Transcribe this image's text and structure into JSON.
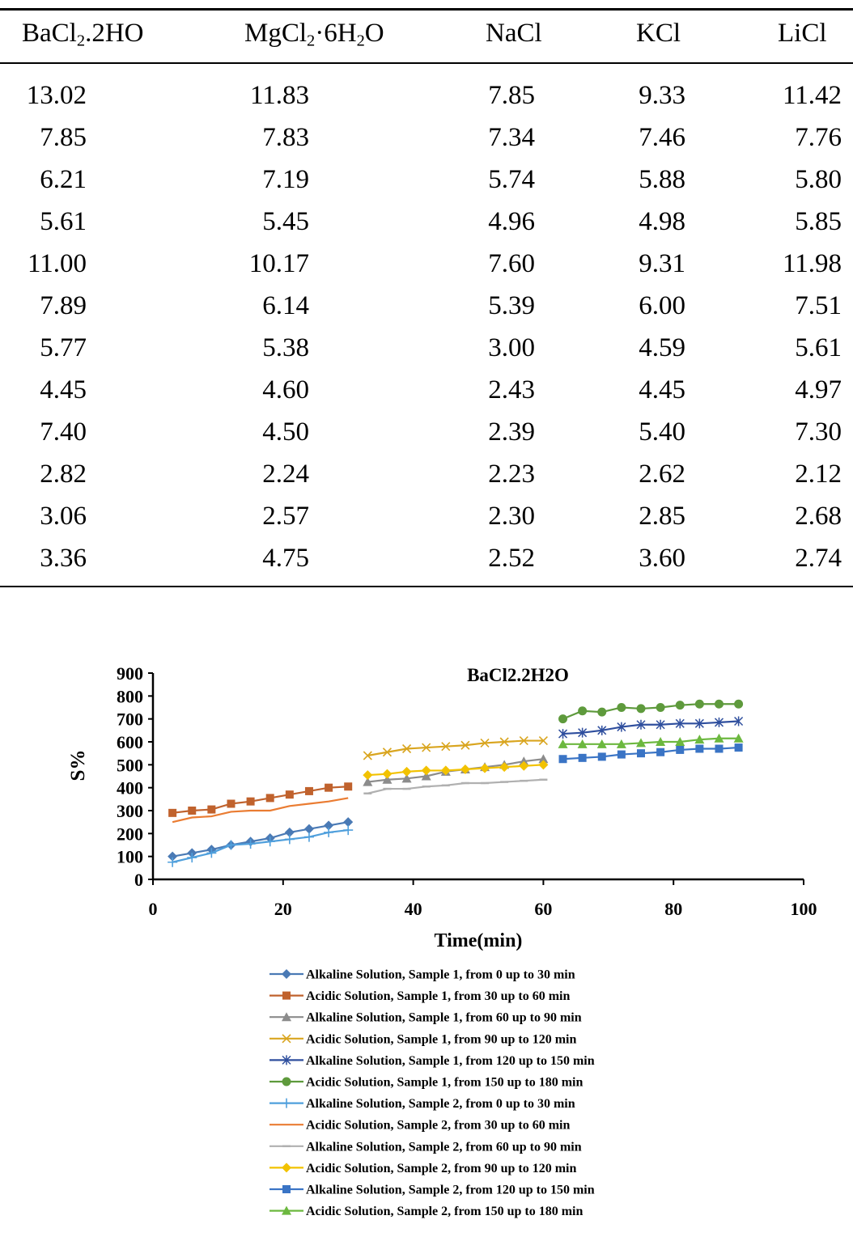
{
  "table": {
    "headers": [
      {
        "base": "BaCl",
        "sub1": "2",
        "rest": ".2HO",
        "sub2": "",
        "tail": ""
      },
      {
        "base": "MgCl",
        "sub1": "2",
        "rest": "·6H",
        "sub2": "2",
        "tail": "O"
      },
      {
        "base": "NaCl",
        "sub1": "",
        "rest": "",
        "sub2": "",
        "tail": ""
      },
      {
        "base": "KCl",
        "sub1": "",
        "rest": "",
        "sub2": "",
        "tail": ""
      },
      {
        "base": "LiCl",
        "sub1": "",
        "rest": "",
        "sub2": "",
        "tail": ""
      }
    ],
    "rows": [
      [
        "13.02",
        "11.83",
        "7.85",
        "9.33",
        "11.42"
      ],
      [
        "7.85",
        "7.83",
        "7.34",
        "7.46",
        "7.76"
      ],
      [
        "6.21",
        "7.19",
        "5.74",
        "5.88",
        "5.80"
      ],
      [
        "5.61",
        "5.45",
        "4.96",
        "4.98",
        "5.85"
      ],
      [
        "11.00",
        "10.17",
        "7.60",
        "9.31",
        "11.98"
      ],
      [
        "7.89",
        "6.14",
        "5.39",
        "6.00",
        "7.51"
      ],
      [
        "5.77",
        "5.38",
        "3.00",
        "4.59",
        "5.61"
      ],
      [
        "4.45",
        "4.60",
        "2.43",
        "4.45",
        "4.97"
      ],
      [
        "7.40",
        "4.50",
        "2.39",
        "5.40",
        "7.30"
      ],
      [
        "2.82",
        "2.24",
        "2.23",
        "2.62",
        "2.12"
      ],
      [
        "3.06",
        "2.57",
        "2.30",
        "2.85",
        "2.68"
      ],
      [
        "3.36",
        "4.75",
        "2.52",
        "3.60",
        "2.74"
      ]
    ]
  },
  "chart_data": {
    "type": "line",
    "title": "BaCl2.2H2O",
    "xlabel": "Time(min)",
    "ylabel": "S%",
    "xlim": [
      0,
      100
    ],
    "ylim": [
      0,
      900
    ],
    "xticks": [
      0,
      20,
      40,
      60,
      80,
      100
    ],
    "yticks": [
      0,
      100,
      200,
      300,
      400,
      500,
      600,
      700,
      800,
      900
    ],
    "grid": false,
    "legend_position": "bottom",
    "series": [
      {
        "name": "Alkaline Solution, Sample 1, from 0 up to 30 min",
        "color": "#4a7ab5",
        "marker": "diamond",
        "x": [
          3,
          6,
          9,
          12,
          15,
          18,
          21,
          24,
          27,
          30
        ],
        "y": [
          100,
          115,
          130,
          150,
          165,
          180,
          205,
          220,
          235,
          250
        ]
      },
      {
        "name": "Acidic Solution, Sample 1, from 30 up to 60 min",
        "color": "#c0622d",
        "marker": "square",
        "x": [
          3,
          6,
          9,
          12,
          15,
          18,
          21,
          24,
          27,
          30
        ],
        "y": [
          290,
          300,
          305,
          330,
          340,
          355,
          370,
          385,
          400,
          405
        ]
      },
      {
        "name": "Alkaline Solution, Sample 1, from 60 up to 90 min",
        "color": "#8c8c8c",
        "marker": "triangle",
        "x": [
          33,
          36,
          39,
          42,
          45,
          48,
          51,
          54,
          57,
          60
        ],
        "y": [
          425,
          435,
          440,
          450,
          470,
          480,
          490,
          500,
          515,
          525
        ]
      },
      {
        "name": "Acidic Solution, Sample 1, from 90 up to 120 min",
        "color": "#d9a51f",
        "marker": "x",
        "x": [
          33,
          36,
          39,
          42,
          45,
          48,
          51,
          54,
          57,
          60
        ],
        "y": [
          540,
          555,
          570,
          575,
          580,
          585,
          595,
          600,
          605,
          605
        ]
      },
      {
        "name": "Alkaline Solution, Sample 1, from 120 up to 150 min",
        "color": "#2f4f9e",
        "marker": "star",
        "x": [
          63,
          66,
          69,
          72,
          75,
          78,
          81,
          84,
          87,
          90
        ],
        "y": [
          635,
          640,
          650,
          665,
          675,
          675,
          680,
          680,
          685,
          690
        ]
      },
      {
        "name": "Acidic Solution, Sample 1, from 150 up to 180 min",
        "color": "#5e9a3c",
        "marker": "circle",
        "x": [
          63,
          66,
          69,
          72,
          75,
          78,
          81,
          84,
          87,
          90
        ],
        "y": [
          700,
          735,
          730,
          750,
          745,
          750,
          760,
          765,
          765,
          765
        ]
      },
      {
        "name": "Alkaline Solution, Sample 2, from 0 up to 30 min",
        "color": "#4f9fdc",
        "marker": "plus",
        "x": [
          3,
          6,
          9,
          12,
          15,
          18,
          21,
          24,
          27,
          30
        ],
        "y": [
          75,
          95,
          115,
          150,
          155,
          165,
          175,
          185,
          205,
          215
        ]
      },
      {
        "name": "Acidic Solution, Sample 2, from 30 up to 60 min",
        "color": "#ea7c32",
        "marker": "none",
        "x": [
          3,
          6,
          9,
          12,
          15,
          18,
          21,
          24,
          27,
          30
        ],
        "y": [
          250,
          270,
          275,
          295,
          300,
          300,
          320,
          330,
          340,
          355
        ]
      },
      {
        "name": "Alkaline Solution, Sample 2, from 60 up to 90 min",
        "color": "#b0b0b0",
        "marker": "dash",
        "x": [
          33,
          36,
          39,
          42,
          45,
          48,
          51,
          54,
          57,
          60
        ],
        "y": [
          375,
          395,
          395,
          405,
          410,
          420,
          420,
          425,
          430,
          435
        ]
      },
      {
        "name": "Acidic Solution, Sample 2, from 90 up to 120 min",
        "color": "#f2c200",
        "marker": "diamond",
        "x": [
          33,
          36,
          39,
          42,
          45,
          48,
          51,
          54,
          57,
          60
        ],
        "y": [
          455,
          460,
          470,
          475,
          475,
          480,
          485,
          490,
          495,
          500
        ]
      },
      {
        "name": "Alkaline Solution, Sample 2, from 120 up to 150 min",
        "color": "#3a74c5",
        "marker": "square",
        "x": [
          63,
          66,
          69,
          72,
          75,
          78,
          81,
          84,
          87,
          90
        ],
        "y": [
          525,
          530,
          535,
          545,
          550,
          555,
          565,
          570,
          570,
          575
        ]
      },
      {
        "name": "Acidic Solution, Sample 2, from 150 up to 180 min",
        "color": "#6cb83f",
        "marker": "triangle",
        "x": [
          63,
          66,
          69,
          72,
          75,
          78,
          81,
          84,
          87,
          90
        ],
        "y": [
          590,
          590,
          590,
          590,
          595,
          600,
          600,
          610,
          615,
          615
        ]
      }
    ]
  }
}
